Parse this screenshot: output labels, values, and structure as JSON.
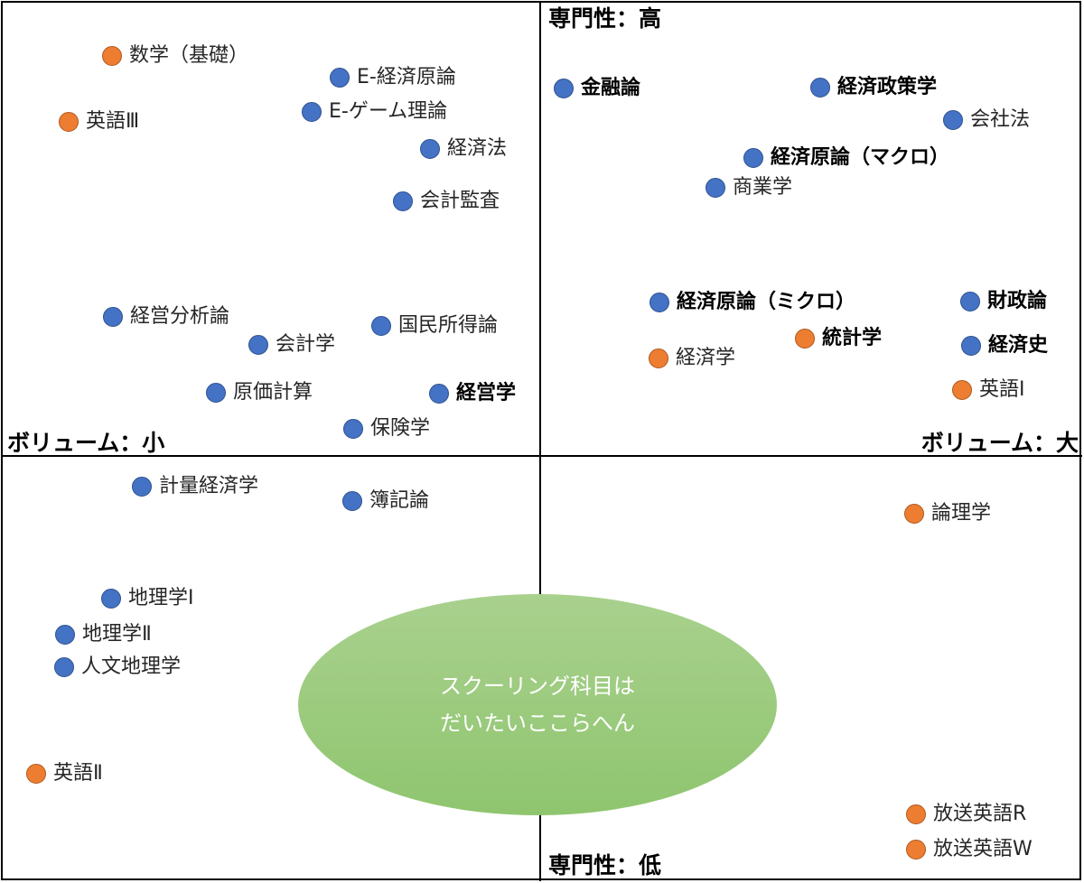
{
  "colors": {
    "blue": "#4472c4",
    "orange": "#ed7d31",
    "ellipse": "#a9d18e"
  },
  "axes": {
    "top": "専門性：高",
    "bottom": "専門性：低",
    "left": "ボリューム：小",
    "right": "ボリューム：大"
  },
  "items": [
    {
      "label": "数学（基礎）",
      "color": "orange",
      "bold": false
    },
    {
      "label": "E-経済原論",
      "color": "blue",
      "bold": false
    },
    {
      "label": "E-ゲーム理論",
      "color": "blue",
      "bold": false
    },
    {
      "label": "英語Ⅲ",
      "color": "orange",
      "bold": false
    },
    {
      "label": "経済法",
      "color": "blue",
      "bold": false
    },
    {
      "label": "会計監査",
      "color": "blue",
      "bold": false
    },
    {
      "label": "経営分析論",
      "color": "blue",
      "bold": false
    },
    {
      "label": "国民所得論",
      "color": "blue",
      "bold": false
    },
    {
      "label": "会計学",
      "color": "blue",
      "bold": false
    },
    {
      "label": "原価計算",
      "color": "blue",
      "bold": false
    },
    {
      "label": "経営学",
      "color": "blue",
      "bold": true
    },
    {
      "label": "保険学",
      "color": "blue",
      "bold": false
    },
    {
      "label": "金融論",
      "color": "blue",
      "bold": true
    },
    {
      "label": "経済政策学",
      "color": "blue",
      "bold": true
    },
    {
      "label": "会社法",
      "color": "blue",
      "bold": false
    },
    {
      "label": "経済原論（マクロ）",
      "color": "blue",
      "bold": true
    },
    {
      "label": "商業学",
      "color": "blue",
      "bold": false
    },
    {
      "label": "経済原論（ミクロ）",
      "color": "blue",
      "bold": true
    },
    {
      "label": "財政論",
      "color": "blue",
      "bold": true
    },
    {
      "label": "統計学",
      "color": "orange",
      "bold": true
    },
    {
      "label": "経済史",
      "color": "blue",
      "bold": true
    },
    {
      "label": "経済学",
      "color": "orange",
      "bold": false
    },
    {
      "label": "英語Ⅰ",
      "color": "orange",
      "bold": false
    },
    {
      "label": "計量経済学",
      "color": "blue",
      "bold": false
    },
    {
      "label": "簿記論",
      "color": "blue",
      "bold": false
    },
    {
      "label": "論理学",
      "color": "orange",
      "bold": false
    },
    {
      "label": "地理学Ⅰ",
      "color": "blue",
      "bold": false
    },
    {
      "label": "地理学Ⅱ",
      "color": "blue",
      "bold": false
    },
    {
      "label": "人文地理学",
      "color": "blue",
      "bold": false
    },
    {
      "label": "英語Ⅱ",
      "color": "orange",
      "bold": false
    },
    {
      "label": "放送英語R",
      "color": "orange",
      "bold": false
    },
    {
      "label": "放送英語W",
      "color": "orange",
      "bold": false
    }
  ],
  "ellipse": {
    "line1": "スクーリング科目は",
    "line2": "だいたいここらへん"
  }
}
